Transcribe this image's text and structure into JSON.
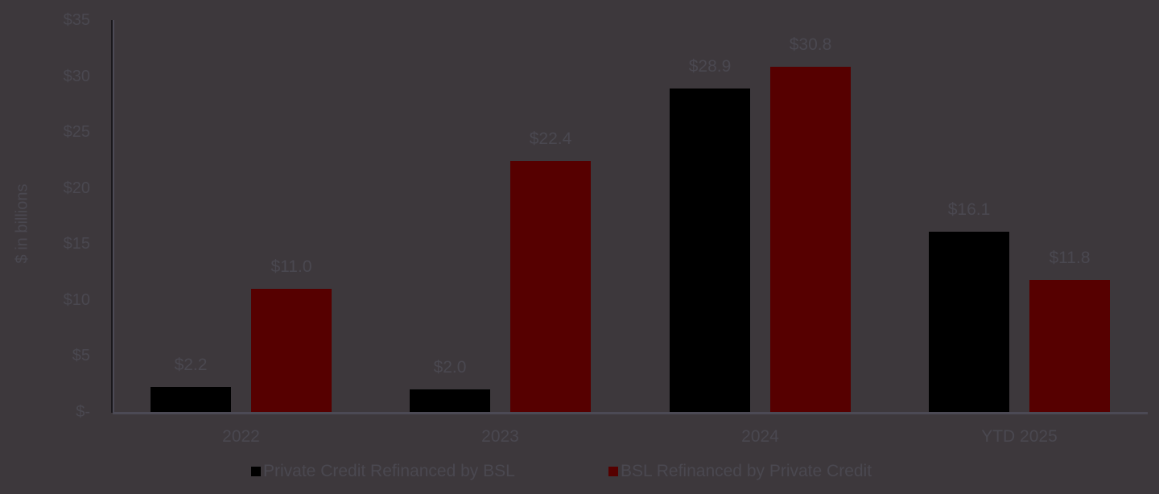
{
  "chart_data": {
    "type": "bar",
    "title": "",
    "xlabel": "",
    "ylabel": "$ in billions",
    "ylim": [
      0,
      35
    ],
    "yticks": [
      "$-",
      "$5",
      "$10",
      "$15",
      "$20",
      "$25",
      "$30",
      "$35"
    ],
    "ytick_values": [
      0,
      5,
      10,
      15,
      20,
      25,
      30,
      35
    ],
    "grid": false,
    "legend_position": "bottom",
    "categories": [
      "2022",
      "2023",
      "2024",
      "YTD 2025"
    ],
    "series": [
      {
        "name": "Private Credit Refinanced by BSL",
        "color": "#000000",
        "values": [
          2.2,
          2.0,
          28.9,
          16.1
        ],
        "labels": [
          "$2.2",
          "$2.0",
          "$28.9",
          "$16.1"
        ]
      },
      {
        "name": "BSL Refinanced by Private Credit",
        "color": "#560000",
        "values": [
          11.0,
          22.4,
          30.8,
          11.8
        ],
        "labels": [
          "$11.0",
          "$22.4",
          "$30.8",
          "$11.8"
        ]
      }
    ]
  }
}
